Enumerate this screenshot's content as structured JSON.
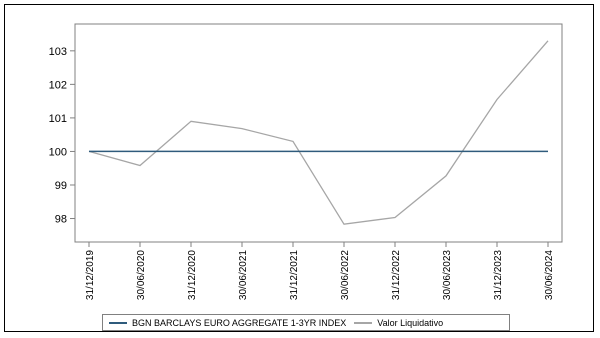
{
  "chart_data": {
    "type": "line",
    "x": [
      "31/12/2019",
      "30/06/2020",
      "31/12/2020",
      "30/06/2021",
      "31/12/2021",
      "30/06/2022",
      "31/12/2022",
      "30/06/2023",
      "31/12/2023",
      "30/06/2024"
    ],
    "series": [
      {
        "name": "BGN BARCLAYS EURO AGGREGATE 1-3YR INDEX",
        "color": "#2f5b7c",
        "values": [
          100,
          100,
          100,
          100,
          100,
          100,
          100,
          100,
          100,
          100
        ]
      },
      {
        "name": "Valor Liquidativo",
        "color": "#a6a6a6",
        "values": [
          100.0,
          99.58,
          100.9,
          100.68,
          100.3,
          97.83,
          98.03,
          99.27,
          101.55,
          103.3
        ]
      }
    ],
    "ylim": [
      97.3,
      103.8
    ],
    "yticks": [
      98,
      99,
      100,
      101,
      102,
      103
    ],
    "grid": false,
    "legend": "bottom"
  }
}
